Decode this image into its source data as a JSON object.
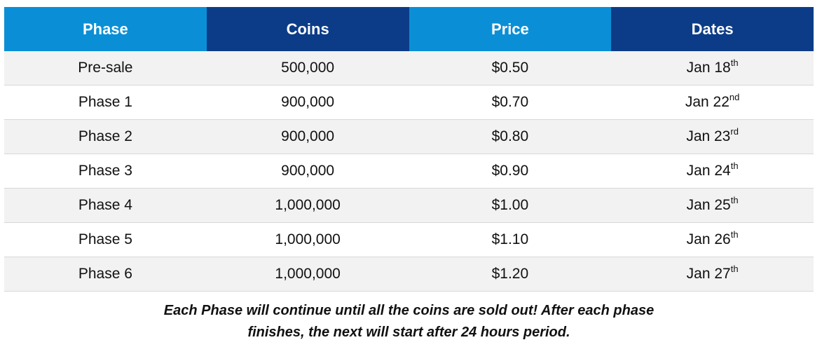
{
  "table": {
    "headers": [
      {
        "label": "Phase"
      },
      {
        "label": "Coins"
      },
      {
        "label": "Price"
      },
      {
        "label": "Dates"
      }
    ],
    "rows": [
      {
        "phase": "Pre-sale",
        "coins": "500,000",
        "price": "$0.50",
        "date": "Jan 18",
        "suffix": "th"
      },
      {
        "phase": "Phase 1",
        "coins": "900,000",
        "price": "$0.70",
        "date": "Jan 22",
        "suffix": "nd"
      },
      {
        "phase": "Phase 2",
        "coins": "900,000",
        "price": "$0.80",
        "date": "Jan 23",
        "suffix": "rd"
      },
      {
        "phase": "Phase 3",
        "coins": "900,000",
        "price": "$0.90",
        "date": "Jan 24",
        "suffix": "th"
      },
      {
        "phase": "Phase 4",
        "coins": "1,000,000",
        "price": "$1.00",
        "date": "Jan 25",
        "suffix": "th"
      },
      {
        "phase": "Phase 5",
        "coins": "1,000,000",
        "price": "$1.10",
        "date": "Jan 26",
        "suffix": "th"
      },
      {
        "phase": "Phase 6",
        "coins": "1,000,000",
        "price": "$1.20",
        "date": "Jan 27",
        "suffix": "th"
      }
    ]
  },
  "note": {
    "line1": "Each Phase will continue until all the coins are sold out! After each phase",
    "line2": "finishes, the next will start after 24 hours period."
  },
  "colors": {
    "header_light": "#0a8fd6",
    "header_dark": "#0c3c87",
    "row_alt": "#f2f2f2"
  }
}
